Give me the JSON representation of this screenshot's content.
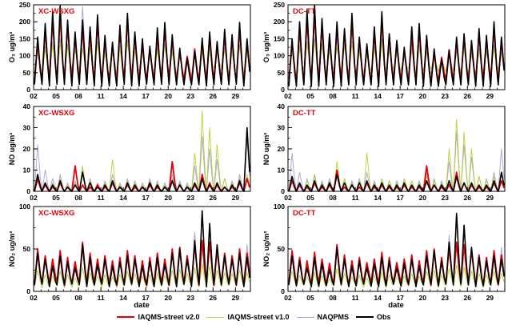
{
  "chart_data": {
    "type": "line",
    "xlabel": "date",
    "x_ticks": [
      "02",
      "05",
      "08",
      "11",
      "14",
      "17",
      "20",
      "23",
      "26",
      "29"
    ],
    "x_tick_days": [
      2,
      5,
      8,
      11,
      14,
      17,
      20,
      23,
      26,
      29
    ],
    "x_range": [
      2,
      31
    ],
    "legend": [
      {
        "label": "IAQMS-street v2.0",
        "color": "#e8000b",
        "lw": 2
      },
      {
        "label": "IAQMS-street v1.0",
        "color": "#b4d330",
        "lw": 1
      },
      {
        "label": "NAQPMS",
        "color": "#a3a3d6",
        "lw": 1
      },
      {
        "label": "Obs",
        "color": "#000000",
        "lw": 2
      }
    ],
    "panels": [
      {
        "station": "XC-WSXG",
        "pollutant": "O3",
        "ylabel": "O₃ ug/m³",
        "ylim": [
          0,
          250
        ],
        "yticks": [
          0,
          50,
          100,
          150,
          200,
          250
        ],
        "series": [
          {
            "name": "NAQPMS",
            "color": "#a3a3d6",
            "lw": 0.9,
            "min": 48,
            "max": [
              118,
              128,
              140,
              150,
              134,
              124,
              245,
              130,
              142,
              120,
              112,
              130,
              148,
              126,
              114,
              106,
              124,
              134,
              118,
              100,
              96,
              106,
              116,
              130,
              112,
              124,
              116,
              134,
              112
            ]
          },
          {
            "name": "IAQMS-street v1.0",
            "color": "#b4d330",
            "lw": 0.9,
            "min": 55,
            "max": [
              112,
              120,
              132,
              140,
              126,
              114,
              122,
              130,
              134,
              110,
              104,
              120,
              138,
              116,
              106,
              100,
              116,
              124,
              110,
              96,
              90,
              100,
              110,
              120,
              104,
              114,
              110,
              124,
              106
            ]
          },
          {
            "name": "IAQMS-street v2.0",
            "color": "#e8000b",
            "lw": 1.8,
            "min": 30,
            "max": [
              140,
              175,
              205,
              220,
              188,
              158,
              182,
              170,
              198,
              150,
              132,
              172,
              208,
              162,
              140,
              118,
              158,
              178,
              148,
              112,
              98,
              120,
              142,
              158,
              132,
              162,
              150,
              180,
              140
            ]
          },
          {
            "name": "Obs",
            "color": "#000000",
            "lw": 1.6,
            "min": 15,
            "max": [
              155,
              195,
              230,
              248,
              205,
              170,
              205,
              185,
              220,
              160,
              140,
              190,
              225,
              170,
              150,
              128,
              182,
              198,
              162,
              122,
              92,
              112,
              152,
              170,
              142,
              178,
              162,
              198,
              150
            ]
          }
        ]
      },
      {
        "station": "DC-TT",
        "pollutant": "O3",
        "ylabel": "O₃ ug/m³",
        "ylim": [
          0,
          250
        ],
        "yticks": [
          0,
          50,
          100,
          150,
          200,
          250
        ],
        "series": [
          {
            "name": "NAQPMS",
            "color": "#a3a3d6",
            "lw": 0.9,
            "min": 45,
            "max": [
              115,
              130,
              142,
              152,
              136,
              122,
              150,
              132,
              144,
              118,
              110,
              128,
              150,
              124,
              112,
              104,
              122,
              132,
              116,
              98,
              94,
              104,
              114,
              128,
              110,
              122,
              114,
              132,
              110
            ]
          },
          {
            "name": "IAQMS-street v1.0",
            "color": "#b4d330",
            "lw": 0.9,
            "min": 52,
            "max": [
              110,
              122,
              134,
              142,
              128,
              112,
              124,
              128,
              136,
              108,
              102,
              118,
              140,
              114,
              104,
              98,
              114,
              122,
              108,
              94,
              88,
              98,
              108,
              118,
              102,
              112,
              108,
              122,
              104
            ]
          },
          {
            "name": "IAQMS-street v2.0",
            "color": "#e8000b",
            "lw": 1.8,
            "min": 28,
            "max": [
              138,
              180,
              210,
              225,
              190,
              155,
              185,
              168,
              200,
              148,
              130,
              170,
              210,
              160,
              138,
              115,
              160,
              175,
              150,
              110,
              95,
              118,
              145,
              155,
              135,
              165,
              148,
              182,
              142
            ]
          },
          {
            "name": "Obs",
            "color": "#000000",
            "lw": 1.6,
            "min": 14,
            "max": [
              150,
              200,
              235,
              250,
              210,
              165,
              200,
              180,
              225,
              155,
              135,
              185,
              230,
              165,
              145,
              125,
              185,
              195,
              160,
              120,
              90,
              115,
              155,
              165,
              145,
              180,
              160,
              200,
              155
            ]
          }
        ]
      },
      {
        "station": "XC-WSXG",
        "pollutant": "NO",
        "ylabel": "NO ug/m³",
        "ylim": [
          0,
          40
        ],
        "yticks": [
          0,
          10,
          20,
          30,
          40
        ],
        "series": [
          {
            "name": "NAQPMS",
            "color": "#a3a3d6",
            "lw": 0.9,
            "min": 0,
            "max": [
              22,
              10,
              6,
              8,
              4,
              5,
              10,
              6,
              4,
              5,
              8,
              4,
              6,
              5,
              4,
              6,
              5,
              4,
              8,
              5,
              4,
              12,
              26,
              20,
              15,
              6,
              5,
              8,
              24
            ]
          },
          {
            "name": "IAQMS-street v1.0",
            "color": "#b4d330",
            "lw": 0.9,
            "min": 0,
            "max": [
              5,
              3,
              4,
              6,
              3,
              4,
              12,
              5,
              3,
              4,
              15,
              3,
              5,
              4,
              3,
              5,
              4,
              3,
              6,
              4,
              3,
              18,
              38,
              30,
              22,
              6,
              4,
              6,
              8
            ]
          },
          {
            "name": "IAQMS-street v2.0",
            "color": "#e8000b",
            "lw": 1.8,
            "min": 0,
            "max": [
              6,
              3,
              2,
              4,
              2,
              12,
              3,
              2,
              3,
              2,
              4,
              2,
              3,
              2,
              2,
              3,
              2,
              2,
              14,
              3,
              2,
              3,
              8,
              4,
              3,
              2,
              2,
              4,
              6
            ]
          },
          {
            "name": "Obs",
            "color": "#000000",
            "lw": 1.6,
            "min": 0,
            "max": [
              8,
              4,
              3,
              5,
              2,
              3,
              9,
              4,
              2,
              3,
              5,
              2,
              4,
              3,
              2,
              4,
              3,
              2,
              5,
              3,
              2,
              4,
              6,
              3,
              4,
              2,
              3,
              5,
              30
            ]
          }
        ]
      },
      {
        "station": "DC-TT",
        "pollutant": "NO",
        "ylabel": "NO ug/m³",
        "ylim": [
          0,
          40
        ],
        "yticks": [
          0,
          10,
          20,
          30,
          40
        ],
        "series": [
          {
            "name": "NAQPMS",
            "color": "#a3a3d6",
            "lw": 0.9,
            "min": 0,
            "max": [
              18,
              9,
              6,
              8,
              5,
              6,
              10,
              6,
              5,
              6,
              9,
              5,
              6,
              5,
              5,
              6,
              5,
              5,
              9,
              6,
              5,
              14,
              28,
              22,
              16,
              7,
              6,
              9,
              20
            ]
          },
          {
            "name": "IAQMS-street v1.0",
            "color": "#b4d330",
            "lw": 0.9,
            "min": 0,
            "max": [
              6,
              4,
              5,
              7,
              4,
              5,
              14,
              6,
              4,
              5,
              18,
              4,
              6,
              5,
              4,
              6,
              5,
              4,
              7,
              5,
              4,
              20,
              34,
              28,
              20,
              7,
              5,
              7,
              9
            ]
          },
          {
            "name": "IAQMS-street v2.0",
            "color": "#e8000b",
            "lw": 1.8,
            "min": 0,
            "max": [
              5,
              3,
              2,
              4,
              2,
              3,
              10,
              2,
              3,
              2,
              4,
              2,
              3,
              2,
              2,
              3,
              2,
              2,
              12,
              3,
              2,
              3,
              9,
              4,
              3,
              2,
              2,
              4,
              5
            ]
          },
          {
            "name": "Obs",
            "color": "#000000",
            "lw": 1.6,
            "min": 0,
            "max": [
              7,
              4,
              3,
              5,
              3,
              4,
              8,
              4,
              3,
              4,
              5,
              3,
              4,
              3,
              3,
              4,
              3,
              3,
              5,
              3,
              3,
              5,
              7,
              4,
              4,
              3,
              3,
              5,
              9
            ]
          }
        ]
      },
      {
        "station": "XC-WSXG",
        "pollutant": "NO2",
        "ylabel": "NO₂ ug/m³",
        "ylim": [
          0,
          100
        ],
        "yticks": [
          0,
          50,
          100
        ],
        "series": [
          {
            "name": "NAQPMS",
            "color": "#a3a3d6",
            "lw": 0.9,
            "min": 12,
            "max": [
              48,
              35,
              28,
              38,
              30,
              26,
              50,
              36,
              28,
              34,
              27,
              32,
              40,
              34,
              27,
              32,
              36,
              29,
              42,
              46,
              34,
              70,
              88,
              75,
              52,
              38,
              34,
              42,
              55
            ]
          },
          {
            "name": "IAQMS-street v1.0",
            "color": "#b4d330",
            "lw": 0.9,
            "min": 6,
            "max": [
              25,
              20,
              18,
              24,
              20,
              16,
              28,
              22,
              18,
              20,
              17,
              20,
              24,
              21,
              18,
              20,
              22,
              19,
              25,
              26,
              21,
              28,
              32,
              30,
              25,
              22,
              21,
              25,
              22
            ]
          },
          {
            "name": "IAQMS-street v2.0",
            "color": "#e8000b",
            "lw": 1.8,
            "min": 10,
            "max": [
              50,
              42,
              38,
              48,
              40,
              35,
              58,
              45,
              38,
              42,
              36,
              40,
              48,
              42,
              36,
              40,
              45,
              38,
              50,
              52,
              42,
              55,
              60,
              58,
              50,
              45,
              42,
              50,
              45
            ]
          },
          {
            "name": "Obs",
            "color": "#000000",
            "lw": 1.6,
            "min": 8,
            "max": [
              45,
              38,
              30,
              42,
              35,
              28,
              55,
              40,
              32,
              38,
              30,
              35,
              42,
              38,
              30,
              35,
              40,
              32,
              45,
              50,
              38,
              60,
              95,
              80,
              55,
              42,
              38,
              45,
              40
            ]
          }
        ]
      },
      {
        "station": "DC-TT",
        "pollutant": "NO2",
        "ylabel": "NO₂ ug/m³",
        "ylim": [
          0,
          100
        ],
        "yticks": [
          0,
          50,
          100
        ],
        "series": [
          {
            "name": "NAQPMS",
            "color": "#a3a3d6",
            "lw": 0.9,
            "min": 11,
            "max": [
              45,
              33,
              26,
              36,
              28,
              24,
              48,
              34,
              26,
              32,
              25,
              30,
              38,
              32,
              25,
              30,
              34,
              27,
              40,
              44,
              32,
              66,
              85,
              72,
              50,
              36,
              32,
              40,
              52
            ]
          },
          {
            "name": "IAQMS-street v1.0",
            "color": "#b4d330",
            "lw": 0.9,
            "min": 6,
            "max": [
              24,
              19,
              17,
              23,
              19,
              15,
              27,
              21,
              17,
              19,
              16,
              19,
              23,
              20,
              17,
              19,
              21,
              18,
              24,
              25,
              20,
              27,
              31,
              29,
              24,
              21,
              20,
              24,
              21
            ]
          },
          {
            "name": "IAQMS-street v2.0",
            "color": "#e8000b",
            "lw": 1.8,
            "min": 10,
            "max": [
              48,
              40,
              36,
              46,
              38,
              33,
              55,
              43,
              36,
              40,
              34,
              38,
              46,
              40,
              34,
              38,
              43,
              36,
              48,
              50,
              40,
              52,
              58,
              55,
              48,
              43,
              40,
              48,
              43
            ]
          },
          {
            "name": "Obs",
            "color": "#000000",
            "lw": 1.6,
            "min": 8,
            "max": [
              42,
              36,
              28,
              40,
              33,
              26,
              52,
              38,
              30,
              36,
              28,
              33,
              40,
              36,
              28,
              33,
              38,
              30,
              42,
              48,
              36,
              58,
              92,
              78,
              52,
              40,
              36,
              42,
              38
            ]
          }
        ]
      }
    ]
  }
}
